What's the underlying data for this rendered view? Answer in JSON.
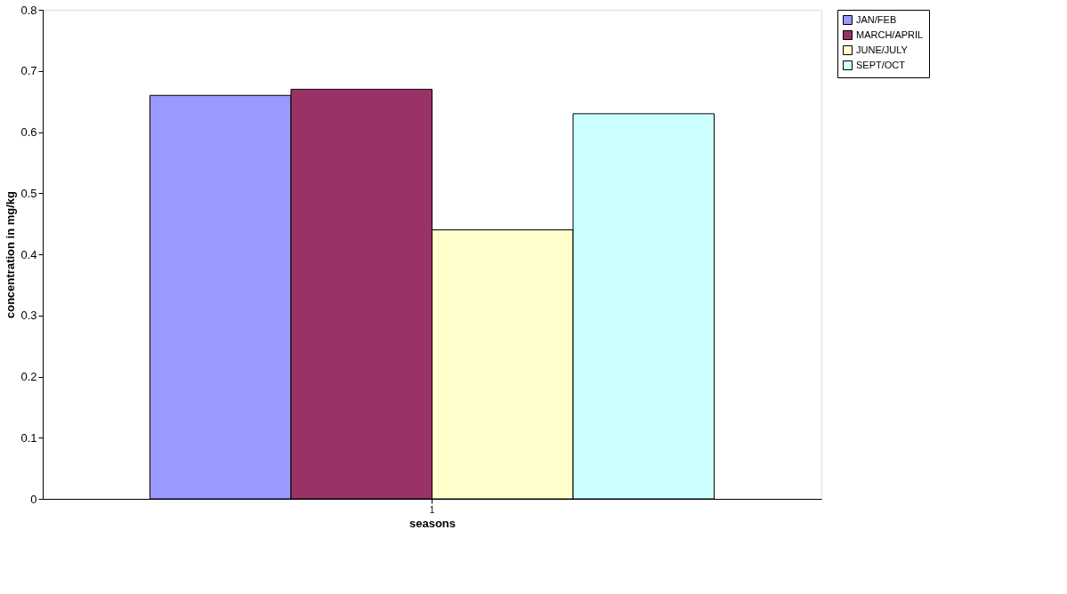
{
  "chart_data": {
    "type": "bar",
    "xlabel": "seasons",
    "ylabel": "concentration in mg/kg",
    "categories": [
      "1"
    ],
    "series": [
      {
        "name": "JAN/FEB",
        "color": "#9999ff",
        "values": [
          0.66
        ]
      },
      {
        "name": "MARCH/APRIL",
        "color": "#993366",
        "values": [
          0.67
        ]
      },
      {
        "name": "JUNE/JULY",
        "color": "#ffffcc",
        "values": [
          0.44
        ]
      },
      {
        "name": "SEPT/OCT",
        "color": "#ccffff",
        "values": [
          0.63
        ]
      }
    ],
    "ylim": [
      0,
      0.8
    ],
    "yticks": [
      0,
      0.1,
      0.2,
      0.3,
      0.4,
      0.5,
      0.6,
      0.7,
      0.8
    ],
    "grid": false,
    "legend": "right"
  }
}
